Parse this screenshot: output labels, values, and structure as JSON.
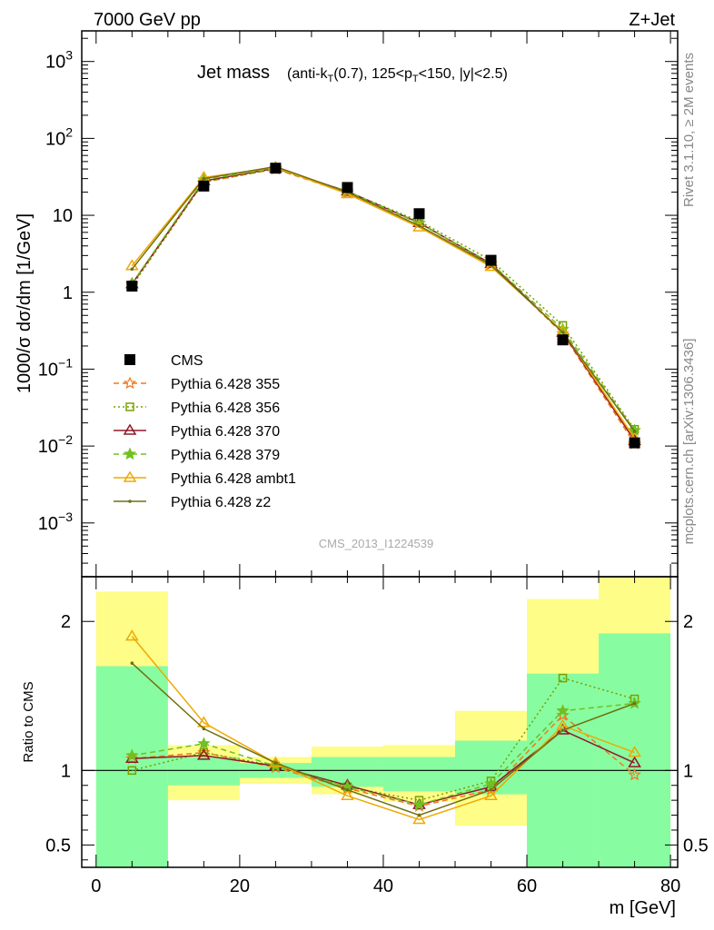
{
  "header": {
    "left": "7000 GeV pp",
    "right": "Z+Jet"
  },
  "side_labels": {
    "rivet": "Rivet 3.1.10, ≥ 2M events",
    "mcplots": "mcplots.cern.ch [arXiv:1306.3436]"
  },
  "watermark": "CMS_2013_I1224539",
  "chart_data": [
    {
      "type": "scatter",
      "title": "Jet mass",
      "title_detail": "(anti-k_T(0.7), 125<p_T<150, |y|<2.5)",
      "ylabel": "1000/σ dσ/dm [1/GeV]",
      "yscale": "log",
      "ylim": [
        0.0002,
        2500
      ],
      "xlim": [
        -2,
        81
      ],
      "x": [
        5,
        15,
        25,
        35,
        45,
        55,
        65,
        75
      ],
      "x_bin_edges": [
        0,
        10,
        20,
        30,
        40,
        50,
        60,
        70,
        80
      ],
      "y_ticks": [
        {
          "value": 0.001,
          "base": "10",
          "exp": "−3"
        },
        {
          "value": 0.01,
          "base": "10",
          "exp": "−2"
        },
        {
          "value": 0.1,
          "base": "10",
          "exp": "−1"
        },
        {
          "value": 1,
          "base": "1",
          "exp": ""
        },
        {
          "value": 10,
          "base": "10",
          "exp": ""
        },
        {
          "value": 100,
          "base": "10",
          "exp": "2"
        },
        {
          "value": 1000,
          "base": "10",
          "exp": "3"
        }
      ],
      "legend_position": "left-middle",
      "series": [
        {
          "name": "CMS",
          "color": "#000000",
          "marker": "square",
          "line": "none",
          "values": [
            1.2,
            24,
            41,
            23,
            10.5,
            2.6,
            0.24,
            0.011
          ]
        },
        {
          "name": "Pythia 6.428 355",
          "color": "#f07820",
          "marker": "star-open",
          "line": "dashed",
          "values": [
            1.25,
            27,
            40,
            19.5,
            7.9,
            2.3,
            0.29,
            0.0107
          ]
        },
        {
          "name": "Pythia 6.428 356",
          "color": "#78a000",
          "marker": "square-open",
          "line": "dotted",
          "values": [
            1.2,
            27,
            40,
            20.5,
            8.4,
            2.6,
            0.37,
            0.0165
          ]
        },
        {
          "name": "Pythia 6.428 370",
          "color": "#901828",
          "marker": "triangle-open",
          "line": "solid",
          "values": [
            1.28,
            28,
            41,
            20.5,
            8.0,
            2.35,
            0.3,
            0.0117
          ]
        },
        {
          "name": "Pythia 6.428 379",
          "color": "#70c020",
          "marker": "star",
          "line": "dashed",
          "values": [
            1.3,
            29,
            41,
            20.5,
            7.9,
            2.4,
            0.33,
            0.016
          ]
        },
        {
          "name": "Pythia 6.428 ambt1",
          "color": "#f0a800",
          "marker": "triangle-open",
          "line": "solid",
          "values": [
            2.2,
            31,
            42,
            19,
            7.0,
            2.15,
            0.31,
            0.0126
          ]
        },
        {
          "name": "Pythia 6.428 z2",
          "color": "#707010",
          "marker": "dot",
          "line": "solid",
          "values": [
            2.0,
            30,
            43,
            20,
            7.3,
            2.25,
            0.3,
            0.0155
          ]
        }
      ]
    },
    {
      "type": "scatter",
      "ylabel": "Ratio to CMS",
      "xlabel": "m [GeV]",
      "ylim": [
        0.35,
        2.3
      ],
      "xlim": [
        -2,
        81
      ],
      "x_ticks": [
        0,
        20,
        40,
        60,
        80
      ],
      "y_ticks": [
        0.5,
        1,
        2
      ],
      "reference": 1,
      "bands": [
        {
          "color": "#fdfd88",
          "lower": [
            0.35,
            0.8,
            0.91,
            0.84,
            0.79,
            0.63,
            0.37,
            0.35
          ],
          "upper": [
            2.2,
            1.17,
            1.09,
            1.16,
            1.17,
            1.4,
            2.15,
            2.3
          ]
        },
        {
          "color": "#88fca0",
          "lower": [
            0.35,
            0.9,
            0.95,
            0.89,
            0.86,
            0.84,
            0.35,
            0.35
          ],
          "upper": [
            1.7,
            1.09,
            1.05,
            1.09,
            1.09,
            1.2,
            1.65,
            1.92
          ]
        }
      ],
      "series": [
        {
          "name": "Pythia 6.428 355",
          "color": "#f07820",
          "marker": "star-open",
          "line": "dashed",
          "values": [
            1.08,
            1.12,
            1.02,
            0.88,
            0.76,
            0.87,
            1.37,
            0.97
          ]
        },
        {
          "name": "Pythia 6.428 356",
          "color": "#78a000",
          "marker": "square-open",
          "line": "dotted",
          "values": [
            1.0,
            1.12,
            1.03,
            0.89,
            0.8,
            0.93,
            1.62,
            1.48
          ]
        },
        {
          "name": "Pythia 6.428 370",
          "color": "#901828",
          "marker": "triangle-open",
          "line": "solid",
          "values": [
            1.08,
            1.1,
            1.03,
            0.9,
            0.77,
            0.89,
            1.27,
            1.05
          ]
        },
        {
          "name": "Pythia 6.428 379",
          "color": "#70c020",
          "marker": "star",
          "line": "dashed",
          "values": [
            1.1,
            1.18,
            1.03,
            0.89,
            0.77,
            0.91,
            1.4,
            1.45
          ]
        },
        {
          "name": "Pythia 6.428 ambt1",
          "color": "#f0a800",
          "marker": "triangle-open",
          "line": "solid",
          "values": [
            1.9,
            1.32,
            1.05,
            0.83,
            0.67,
            0.83,
            1.3,
            1.12
          ]
        },
        {
          "name": "Pythia 6.428 z2",
          "color": "#707010",
          "marker": "dot",
          "line": "solid",
          "values": [
            1.72,
            1.28,
            1.05,
            0.87,
            0.7,
            0.87,
            1.27,
            1.45
          ]
        }
      ]
    }
  ]
}
